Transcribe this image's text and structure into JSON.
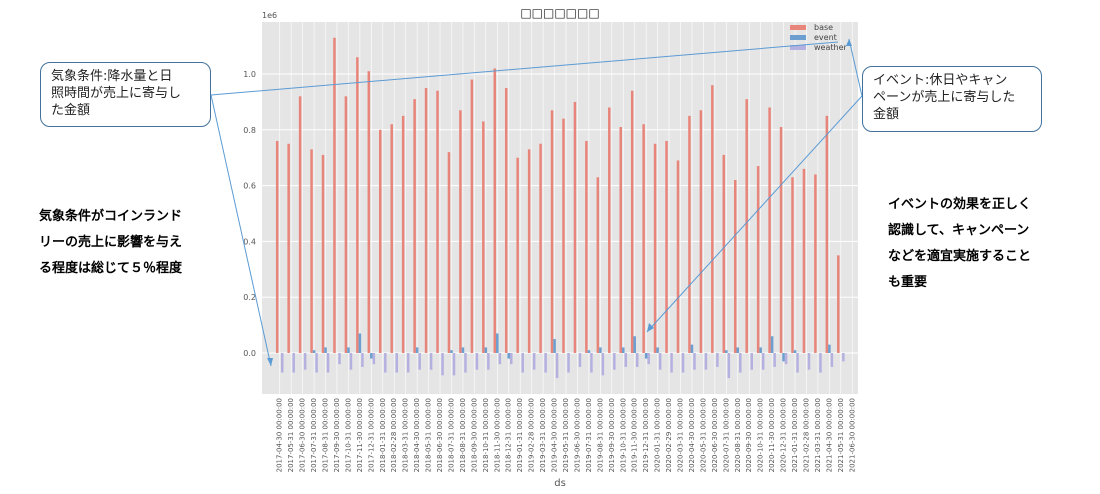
{
  "chart_data": {
    "type": "bar",
    "title": "□□□□□□□",
    "xlabel": "ds",
    "ylabel": "",
    "y_scale_label": "1e6",
    "ylim": [
      -0.12,
      1.2
    ],
    "yticks": [
      "0.0",
      "0.2",
      "0.4",
      "0.6",
      "0.8",
      "1.0"
    ],
    "ytick_values": [
      0.0,
      0.2,
      0.4,
      0.6,
      0.8,
      1.0
    ],
    "legend_position": "top-right",
    "grid": true,
    "categories": [
      "2017-04-30 00:00:00",
      "2017-05-31 00:00:00",
      "2017-06-30 00:00:00",
      "2017-07-31 00:00:00",
      "2017-08-31 00:00:00",
      "2017-09-30 00:00:00",
      "2017-10-31 00:00:00",
      "2017-11-30 00:00:00",
      "2017-12-31 00:00:00",
      "2018-01-31 00:00:00",
      "2018-02-28 00:00:00",
      "2018-03-31 00:00:00",
      "2018-04-30 00:00:00",
      "2018-05-31 00:00:00",
      "2018-06-30 00:00:00",
      "2018-07-31 00:00:00",
      "2018-08-31 00:00:00",
      "2018-09-30 00:00:00",
      "2018-10-31 00:00:00",
      "2018-11-30 00:00:00",
      "2018-12-31 00:00:00",
      "2019-01-31 00:00:00",
      "2019-02-28 00:00:00",
      "2019-03-31 00:00:00",
      "2019-04-30 00:00:00",
      "2019-05-31 00:00:00",
      "2019-06-30 00:00:00",
      "2019-07-31 00:00:00",
      "2019-08-31 00:00:00",
      "2019-09-30 00:00:00",
      "2019-10-31 00:00:00",
      "2019-11-30 00:00:00",
      "2019-12-31 00:00:00",
      "2020-01-31 00:00:00",
      "2020-02-29 00:00:00",
      "2020-03-31 00:00:00",
      "2020-04-30 00:00:00",
      "2020-05-31 00:00:00",
      "2020-06-30 00:00:00",
      "2020-07-31 00:00:00",
      "2020-08-31 00:00:00",
      "2020-09-30 00:00:00",
      "2020-10-31 00:00:00",
      "2020-11-30 00:00:00",
      "2020-12-31 00:00:00",
      "2021-01-31 00:00:00",
      "2021-02-28 00:00:00",
      "2021-03-31 00:00:00",
      "2021-04-30 00:00:00",
      "2021-05-31 00:00:00",
      "2021-06-30 00:00:00"
    ],
    "series": [
      {
        "name": "base",
        "color": "#e8857a",
        "values": [
          0.76,
          0.75,
          0.92,
          0.73,
          0.71,
          1.13,
          0.92,
          1.06,
          1.01,
          0.8,
          0.82,
          0.85,
          0.91,
          0.95,
          0.94,
          0.72,
          0.87,
          0.98,
          0.83,
          1.02,
          0.95,
          0.7,
          0.73,
          0.75,
          0.87,
          0.84,
          0.9,
          0.76,
          0.63,
          0.88,
          0.81,
          0.94,
          0.82,
          0.75,
          0.76,
          0.69,
          0.85,
          0.87,
          0.96,
          0.71,
          0.62,
          0.91,
          0.67,
          0.88,
          0.81,
          0.63,
          0.66,
          0.64,
          0.85,
          0.35,
          0.0
        ]
      },
      {
        "name": "event",
        "color": "#6c9fcf",
        "values": [
          0.0,
          0.0,
          0.0,
          0.01,
          0.02,
          0.0,
          0.02,
          0.07,
          -0.02,
          0.0,
          0.0,
          0.0,
          0.02,
          0.0,
          0.0,
          0.01,
          0.02,
          0.0,
          0.02,
          0.07,
          -0.02,
          0.0,
          0.0,
          0.0,
          0.05,
          0.0,
          0.0,
          0.01,
          0.02,
          0.0,
          0.02,
          0.06,
          -0.02,
          0.02,
          0.0,
          0.0,
          0.03,
          0.0,
          0.0,
          0.01,
          0.02,
          0.0,
          0.02,
          0.06,
          -0.03,
          0.01,
          0.0,
          0.0,
          0.03,
          0.0,
          0.0
        ]
      },
      {
        "name": "weather",
        "color": "#b4b1e0",
        "values": [
          -0.07,
          -0.07,
          -0.06,
          -0.07,
          -0.07,
          -0.04,
          -0.06,
          -0.05,
          -0.04,
          -0.07,
          -0.07,
          -0.07,
          -0.06,
          -0.06,
          -0.08,
          -0.08,
          -0.07,
          -0.06,
          -0.06,
          -0.04,
          -0.04,
          -0.07,
          -0.06,
          -0.07,
          -0.09,
          -0.07,
          -0.05,
          -0.07,
          -0.08,
          -0.06,
          -0.05,
          -0.05,
          -0.04,
          -0.06,
          -0.07,
          -0.07,
          -0.06,
          -0.06,
          -0.05,
          -0.09,
          -0.07,
          -0.06,
          -0.06,
          -0.05,
          -0.04,
          -0.07,
          -0.06,
          -0.07,
          -0.05,
          -0.03,
          0.0
        ]
      }
    ]
  },
  "annotations": {
    "weather_callout": "気象条件:降水量と日\n照時間が売上に寄与し\nた金額",
    "event_callout": "イベント:休日やキャン\nペーンが売上に寄与した\n金額",
    "left_note": "気象条件がコインランド\nリーの売上に影響を与え\nる程度は総じて５％程度",
    "right_note": "イベントの効果を正しく\n認識して、キャンペーン\nなどを適宜実施すること\nも重要"
  },
  "colors": {
    "plot_bg": "#e5e5e5",
    "grid": "#ffffff",
    "arrow": "#5b9bd5",
    "callout_border": "#41719c"
  }
}
